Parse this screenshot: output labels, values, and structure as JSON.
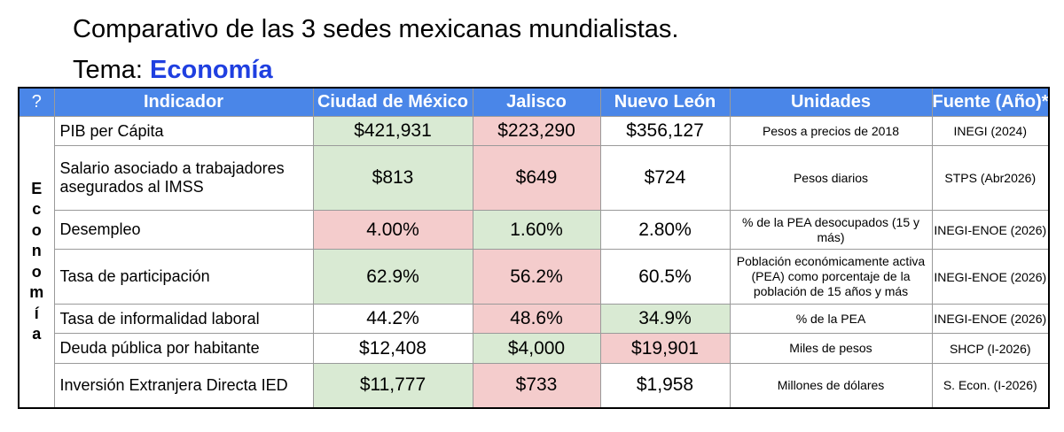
{
  "title": "Comparativo de las 3 sedes mexicanas mundialistas.",
  "subtitle_prefix": "Tema: ",
  "subtitle_topic": "Economía",
  "accent_color": "#1f3fe0",
  "header_color": "#4a86e8",
  "good_color": "#d9ead3",
  "bad_color": "#f4cccc",
  "sidebar_letters": [
    "E",
    "c",
    "o",
    "n",
    "o",
    "m",
    "í",
    "a"
  ],
  "headers": [
    "?",
    "Indicador",
    "Ciudad de México",
    "Jalisco",
    "Nuevo León",
    "Unidades",
    "Fuente (Año)*"
  ],
  "rows": [
    {
      "indicator": "PIB per Cápita",
      "values": [
        "$421,931",
        "$223,290",
        "$356,127"
      ],
      "status": [
        "good",
        "bad",
        "neutral"
      ],
      "units": "Pesos a precios de 2018",
      "source": "INEGI (2024)"
    },
    {
      "indicator": "Salario asociado a trabajadores asegurados al IMSS",
      "values": [
        "$813",
        "$649",
        "$724"
      ],
      "status": [
        "good",
        "bad",
        "neutral"
      ],
      "units": "Pesos diarios",
      "source": "STPS (Abr2026)"
    },
    {
      "indicator": "Desempleo",
      "values": [
        "4.00%",
        "1.60%",
        "2.80%"
      ],
      "status": [
        "bad",
        "good",
        "neutral"
      ],
      "units": "% de la PEA desocupados (15 y más)",
      "source": "INEGI-ENOE (2026)"
    },
    {
      "indicator": "Tasa de participación",
      "values": [
        "62.9%",
        "56.2%",
        "60.5%"
      ],
      "status": [
        "good",
        "bad",
        "neutral"
      ],
      "units": "Población económicamente activa (PEA) como porcentaje de la población de 15 años y más",
      "source": "INEGI-ENOE (2026)"
    },
    {
      "indicator": "Tasa de informalidad laboral",
      "values": [
        "44.2%",
        "48.6%",
        "34.9%"
      ],
      "status": [
        "neutral",
        "bad",
        "good"
      ],
      "units": "% de la PEA",
      "source": "INEGI-ENOE (2026)"
    },
    {
      "indicator": "Deuda pública por habitante",
      "values": [
        "$12,408",
        "$4,000",
        "$19,901"
      ],
      "status": [
        "neutral",
        "good",
        "bad"
      ],
      "units": "Miles de pesos",
      "source": "SHCP (I-2026)"
    },
    {
      "indicator": "Inversión Extranjera Directa IED",
      "values": [
        "$11,777",
        "$733",
        "$1,958"
      ],
      "status": [
        "good",
        "bad",
        "neutral"
      ],
      "units": "Millones de dólares",
      "source": "S. Econ. (I-2026)"
    }
  ]
}
